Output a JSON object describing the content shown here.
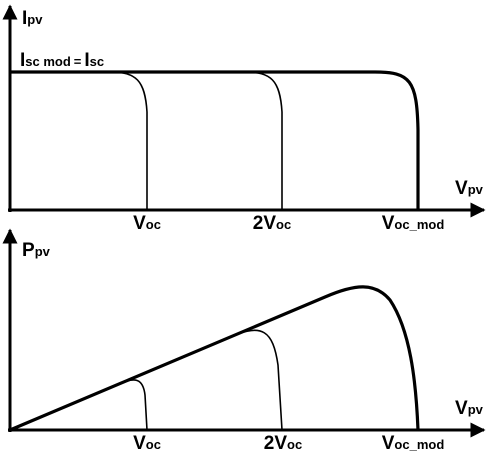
{
  "top_plot": {
    "y_label": {
      "main": "I",
      "sub": "pv"
    },
    "x_label": {
      "main": "V",
      "sub": "pv"
    },
    "curve_label": {
      "main1": "I",
      "sub1": "sc mod",
      "eq": "=",
      "main2": "I",
      "sub2": "sc"
    },
    "x_marks": [
      {
        "main": "V",
        "sub": "oc"
      },
      {
        "main": "2V",
        "sub": "oc"
      },
      {
        "main": "V",
        "sub": "oc_mod"
      }
    ]
  },
  "bottom_plot": {
    "y_label": {
      "main": "P",
      "sub": "pv"
    },
    "x_label": {
      "main": "V",
      "sub": "pv"
    },
    "x_marks": [
      {
        "main": "V",
        "sub": "oc"
      },
      {
        "main": "2V",
        "sub": "oc"
      },
      {
        "main": "V",
        "sub": "oc_mod"
      }
    ]
  }
}
